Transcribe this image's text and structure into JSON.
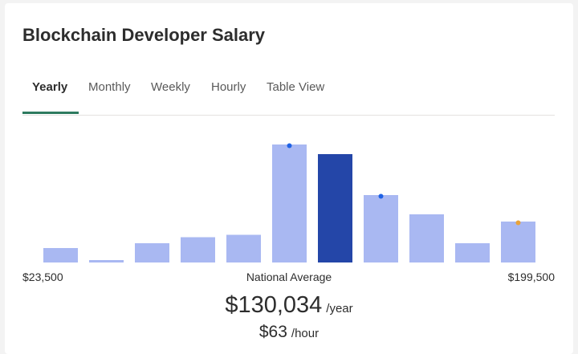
{
  "title": "Blockchain Developer Salary",
  "tabs": [
    {
      "label": "Yearly",
      "active": true
    },
    {
      "label": "Monthly",
      "active": false
    },
    {
      "label": "Weekly",
      "active": false
    },
    {
      "label": "Hourly",
      "active": false
    },
    {
      "label": "Table View",
      "active": false
    }
  ],
  "axis": {
    "min_label": "$23,500",
    "center_label": "National Average",
    "max_label": "$199,500"
  },
  "average": {
    "yearly_value": "$130,034",
    "yearly_unit": "/year",
    "hourly_value": "$63",
    "hourly_unit": "/hour"
  },
  "colors": {
    "bar": "#a9b8f2",
    "bar_highlight": "#2446a8",
    "marker_blue": "#1f62e6",
    "marker_orange": "#e8a23a",
    "tab_underline": "#2d7a5f"
  },
  "chart_data": {
    "type": "bar",
    "values": [
      12,
      2,
      16,
      21,
      23,
      98,
      90,
      56,
      40,
      16,
      34
    ],
    "highlight_index": 6,
    "markers": [
      {
        "index": 5,
        "color": "blue"
      },
      {
        "index": 7,
        "color": "blue"
      },
      {
        "index": 10,
        "color": "orange"
      }
    ]
  }
}
